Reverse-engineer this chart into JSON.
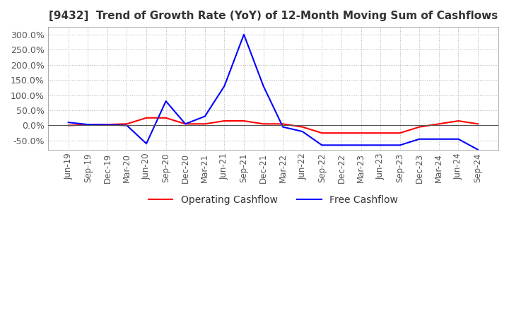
{
  "title": "[9432]  Trend of Growth Rate (YoY) of 12-Month Moving Sum of Cashflows",
  "ylim": [
    -80,
    325
  ],
  "yticks": [
    -50,
    0,
    50,
    100,
    150,
    200,
    250,
    300
  ],
  "ytick_labels": [
    "-50.0%",
    "0.0%",
    "50.0%",
    "100.0%",
    "150.0%",
    "200.0%",
    "250.0%",
    "300.0%"
  ],
  "x_labels": [
    "Jun-19",
    "Sep-19",
    "Dec-19",
    "Mar-20",
    "Jun-20",
    "Sep-20",
    "Dec-20",
    "Mar-21",
    "Jun-21",
    "Sep-21",
    "Dec-21",
    "Mar-22",
    "Jun-22",
    "Sep-22",
    "Dec-22",
    "Mar-23",
    "Jun-23",
    "Sep-23",
    "Dec-23",
    "Mar-24",
    "Jun-24",
    "Sep-24"
  ],
  "operating_cashflow": [
    0,
    2,
    3,
    5,
    25,
    25,
    5,
    5,
    15,
    15,
    5,
    5,
    -5,
    -25,
    -25,
    -25,
    -25,
    -25,
    -5,
    5,
    15,
    5
  ],
  "free_cashflow": [
    10,
    3,
    2,
    0,
    -60,
    80,
    5,
    30,
    130,
    300,
    130,
    -5,
    -20,
    -65,
    -65,
    -65,
    -65,
    -65,
    -45,
    -45,
    -45,
    -80
  ],
  "operating_color": "#ff0000",
  "free_color": "#0000ff",
  "background_color": "#ffffff",
  "grid_color": "#aaaaaa",
  "title_fontsize": 11,
  "title_color": "#333333"
}
